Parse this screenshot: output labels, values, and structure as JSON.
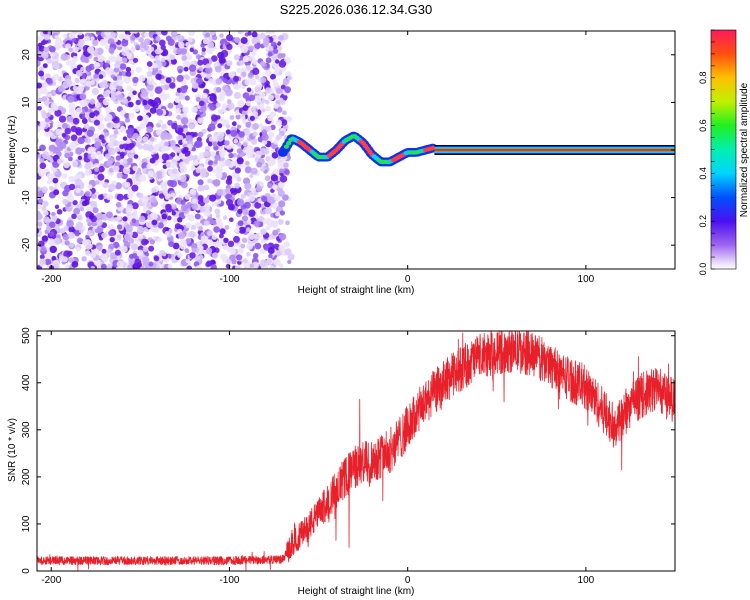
{
  "figure_title": "S225.2026.036.12.34.G30",
  "colors": {
    "scatter": "#6a1de6",
    "snr_line": "#e8202a",
    "axis": "#000000"
  },
  "chart_data": [
    {
      "type": "heatmap",
      "name": "spectrogram",
      "xlabel": "Height of straight line (km)",
      "ylabel": "Frequency (Hz)",
      "xlim": [
        -208,
        150
      ],
      "ylim": [
        -25,
        25
      ],
      "xticks": [
        -200,
        -100,
        0,
        100
      ],
      "xtick_labels": [
        "-200",
        "-100",
        "0",
        "100"
      ],
      "yticks": [
        -20,
        -10,
        0,
        10,
        20
      ],
      "ytick_labels": [
        "-20",
        "-10",
        "0",
        "10",
        "20"
      ],
      "noise_region": {
        "x_range": [
          -208,
          -68
        ],
        "freq_range": [
          -25,
          25
        ],
        "amplitude_range": [
          0.0,
          0.15
        ]
      },
      "signal_track": {
        "description": "frequency of dominant chirp vs height",
        "x": [
          -70,
          -65,
          -60,
          -55,
          -50,
          -45,
          -40,
          -35,
          -30,
          -25,
          -20,
          -15,
          -10,
          -5,
          0,
          5,
          10,
          15
        ],
        "freq": [
          -0.5,
          2.5,
          1.5,
          0,
          -1.5,
          -1.5,
          0,
          2.0,
          3.0,
          1.5,
          -1.0,
          -2.5,
          -2.5,
          -1.5,
          -0.5,
          -0.5,
          0,
          0.5
        ]
      },
      "flat_line": {
        "x_range": [
          15,
          150
        ],
        "freq": 0,
        "amplitude": 0.95
      },
      "colorbar": {
        "label": "Normalized spectral amplitude",
        "range": [
          0,
          1
        ],
        "ticks": [
          0,
          0.2,
          0.4,
          0.6,
          0.8
        ],
        "tick_labels": [
          "0.0",
          "0.2",
          "0.4",
          "0.6",
          "0.8"
        ]
      }
    },
    {
      "type": "line",
      "name": "snr",
      "xlabel": "Height of straight line (km)",
      "ylabel": "SNR (10 * v/v)",
      "xlim": [
        -208,
        150
      ],
      "ylim": [
        0,
        510
      ],
      "xticks": [
        -200,
        -100,
        0,
        100
      ],
      "xtick_labels": [
        "-200",
        "-100",
        "0",
        "100"
      ],
      "yticks": [
        0,
        100,
        200,
        300,
        400,
        500
      ],
      "ytick_labels": [
        "0",
        "100",
        "200",
        "300",
        "400",
        "500"
      ],
      "envelope_x": [
        -208,
        -150,
        -100,
        -70,
        -65,
        -50,
        -40,
        -30,
        -20,
        -10,
        0,
        10,
        20,
        30,
        40,
        50,
        60,
        70,
        80,
        90,
        100,
        110,
        115,
        120,
        125,
        130,
        140,
        150
      ],
      "envelope_y": [
        22,
        22,
        22,
        25,
        55,
        120,
        175,
        220,
        235,
        255,
        305,
        360,
        400,
        430,
        455,
        465,
        470,
        460,
        440,
        410,
        390,
        340,
        310,
        320,
        350,
        370,
        390,
        360
      ],
      "noise_amplitude": 30,
      "notable_spikes": [
        {
          "x": -27,
          "y": 365
        },
        {
          "x": 58,
          "y": 500
        },
        {
          "x": 120,
          "y": 215
        },
        {
          "x": -33,
          "y": 50
        }
      ]
    }
  ]
}
